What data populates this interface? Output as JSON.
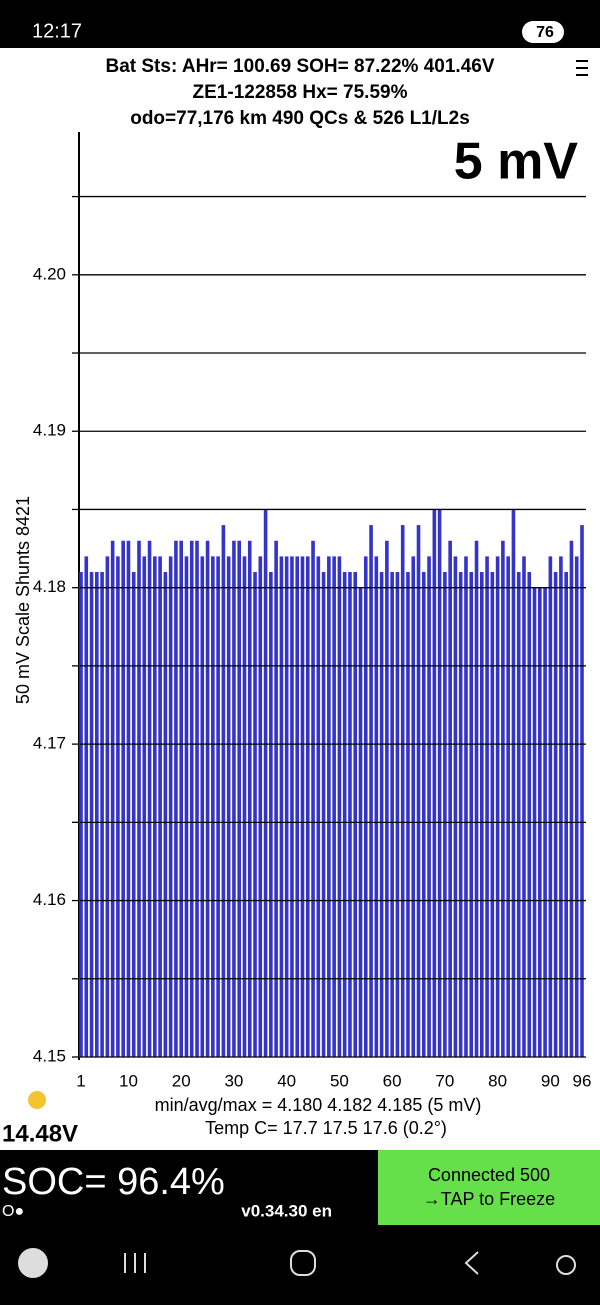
{
  "status_bar": {
    "time": "12:17",
    "battery": "76"
  },
  "header": {
    "line1": "Bat Sts:  AHr= 100.69  SOH= 87.22%  401.46V",
    "line2": "ZE1-122858  Hx= 75.59%",
    "line3": "odo=77,176 km  490 QCs & 526 L1/L2s"
  },
  "chart_data": {
    "type": "bar",
    "annotation": "5 mV",
    "ylabel": "50 mV Scale   Shunts 8421",
    "x": [
      1,
      2,
      3,
      4,
      5,
      6,
      7,
      8,
      9,
      10,
      11,
      12,
      13,
      14,
      15,
      16,
      17,
      18,
      19,
      20,
      21,
      22,
      23,
      24,
      25,
      26,
      27,
      28,
      29,
      30,
      31,
      32,
      33,
      34,
      35,
      36,
      37,
      38,
      39,
      40,
      41,
      42,
      43,
      44,
      45,
      46,
      47,
      48,
      49,
      50,
      51,
      52,
      53,
      54,
      55,
      56,
      57,
      58,
      59,
      60,
      61,
      62,
      63,
      64,
      65,
      66,
      67,
      68,
      69,
      70,
      71,
      72,
      73,
      74,
      75,
      76,
      77,
      78,
      79,
      80,
      81,
      82,
      83,
      84,
      85,
      86,
      87,
      88,
      89,
      90,
      91,
      92,
      93,
      94,
      95,
      96
    ],
    "values": [
      4.181,
      4.182,
      4.181,
      4.181,
      4.181,
      4.182,
      4.183,
      4.182,
      4.183,
      4.183,
      4.181,
      4.183,
      4.182,
      4.183,
      4.182,
      4.182,
      4.181,
      4.182,
      4.183,
      4.183,
      4.182,
      4.183,
      4.183,
      4.182,
      4.183,
      4.182,
      4.182,
      4.184,
      4.182,
      4.183,
      4.183,
      4.182,
      4.183,
      4.181,
      4.182,
      4.185,
      4.181,
      4.183,
      4.182,
      4.182,
      4.182,
      4.182,
      4.182,
      4.182,
      4.183,
      4.182,
      4.181,
      4.182,
      4.182,
      4.182,
      4.181,
      4.181,
      4.181,
      4.18,
      4.182,
      4.184,
      4.182,
      4.181,
      4.183,
      4.181,
      4.181,
      4.184,
      4.181,
      4.182,
      4.184,
      4.181,
      4.182,
      4.185,
      4.185,
      4.181,
      4.183,
      4.182,
      4.181,
      4.182,
      4.181,
      4.183,
      4.181,
      4.182,
      4.181,
      4.182,
      4.183,
      4.182,
      4.185,
      4.181,
      4.182,
      4.181,
      4.18,
      4.18,
      4.18,
      4.182,
      4.181,
      4.182,
      4.181,
      4.183,
      4.182,
      4.184
    ],
    "color": "#3434c8",
    "xlim": [
      1,
      96
    ],
    "xticks": [
      1,
      10,
      20,
      30,
      40,
      50,
      60,
      70,
      80,
      90,
      96
    ],
    "ylim": [
      4.15,
      4.209
    ],
    "yticks": [
      4.15,
      4.16,
      4.17,
      4.18,
      4.19,
      {
        "value": 4.2,
        "label": "4.20"
      }
    ],
    "minor_yticks": [
      4.155,
      4.165,
      4.175,
      4.185,
      4.195,
      4.205
    ],
    "grid": true
  },
  "stats": {
    "minmax": "min/avg/max = 4.180 4.182 4.185  (5 mV)",
    "temp": "Temp C= 17.7  17.5  17.6  (0.2°)",
    "aux_voltage": "14.48V"
  },
  "footer": {
    "soc": "SOC= 96.4%",
    "indicator": "O●",
    "version": "v0.34.30 en",
    "button_line1": "Connected 500",
    "button_line2": "→TAP to Freeze"
  }
}
